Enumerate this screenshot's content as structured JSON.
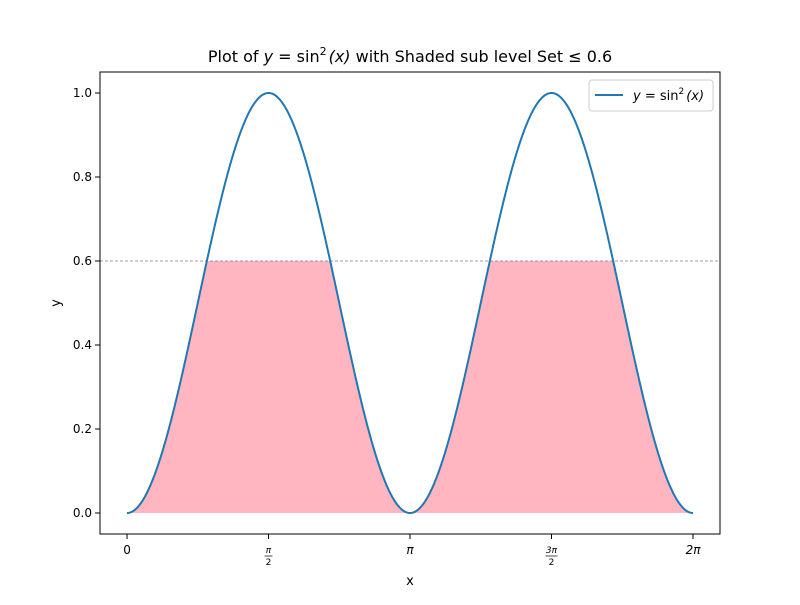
{
  "chart_data": {
    "type": "line",
    "title": "Plot of y = sin²(x) with Shaded sub level Set ≤ 0.6",
    "title_parts": {
      "prefix": "Plot of ",
      "var": "y",
      "eq": " = sin",
      "sup": "2",
      "arg": "(x)",
      "suffix": " with Shaded sub level Set ≤ 0.6"
    },
    "xlabel": "x",
    "ylabel": "y",
    "xlim": [
      -0.3,
      6.583
    ],
    "ylim": [
      -0.05,
      1.05
    ],
    "grid": false,
    "legend_position": "top-right",
    "series": [
      {
        "name": "y = sin²(x)",
        "function": "sin^2(x)",
        "x_range": [
          0,
          6.283185
        ],
        "color": "#1f77b4"
      }
    ],
    "threshold_line": {
      "y": 0.6,
      "style": "dashed",
      "color": "#808080"
    },
    "shaded_region": {
      "condition": "y <= 0.6 (clipped at 0.6)",
      "color": "#ffb6c1"
    },
    "x_ticks": [
      {
        "value": 0,
        "label": "0"
      },
      {
        "value": 1.5708,
        "label": "π/2"
      },
      {
        "value": 3.14159,
        "label": "π"
      },
      {
        "value": 4.71239,
        "label": "3π/2"
      },
      {
        "value": 6.28319,
        "label": "2π"
      }
    ],
    "y_ticks": [
      {
        "value": 0.0,
        "label": "0.0"
      },
      {
        "value": 0.2,
        "label": "0.2"
      },
      {
        "value": 0.4,
        "label": "0.4"
      },
      {
        "value": 0.6,
        "label": "0.6"
      },
      {
        "value": 0.8,
        "label": "0.8"
      },
      {
        "value": 1.0,
        "label": "1.0"
      }
    ],
    "legend": {
      "label_parts": {
        "var": "y",
        "eq": " = sin",
        "sup": "2",
        "arg": "(x)"
      }
    }
  }
}
